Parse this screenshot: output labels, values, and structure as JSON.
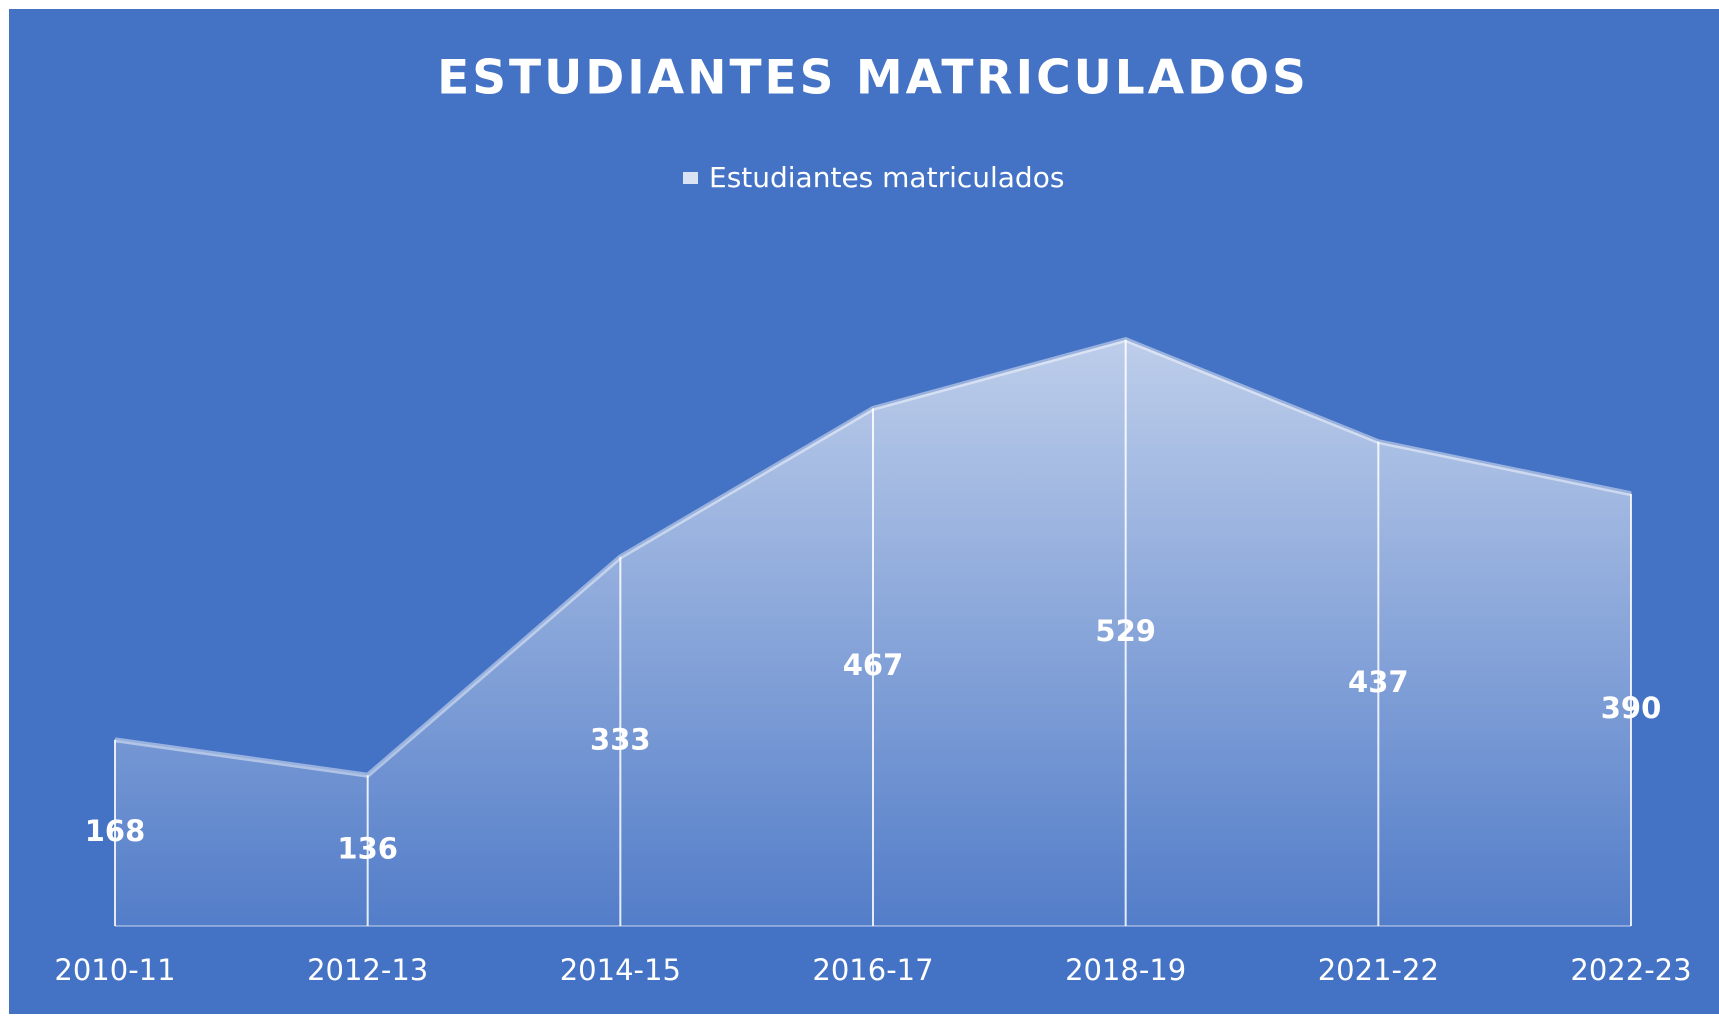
{
  "chart_data": {
    "type": "area",
    "title": "ESTUDIANTES MATRICULADOS",
    "categories": [
      "2010-11",
      "2012-13",
      "2014-15",
      "2016-17",
      "2018-19",
      "2021-22",
      "2022-23"
    ],
    "series": [
      {
        "name": "Estudiantes matriculados",
        "color": "#ffffff",
        "values": [
          168,
          136,
          333,
          467,
          529,
          437,
          390
        ]
      }
    ],
    "ylim": [
      0,
      600
    ],
    "legend": "top",
    "data_labels": true,
    "drop_lines": true,
    "background": "#4472c4"
  }
}
